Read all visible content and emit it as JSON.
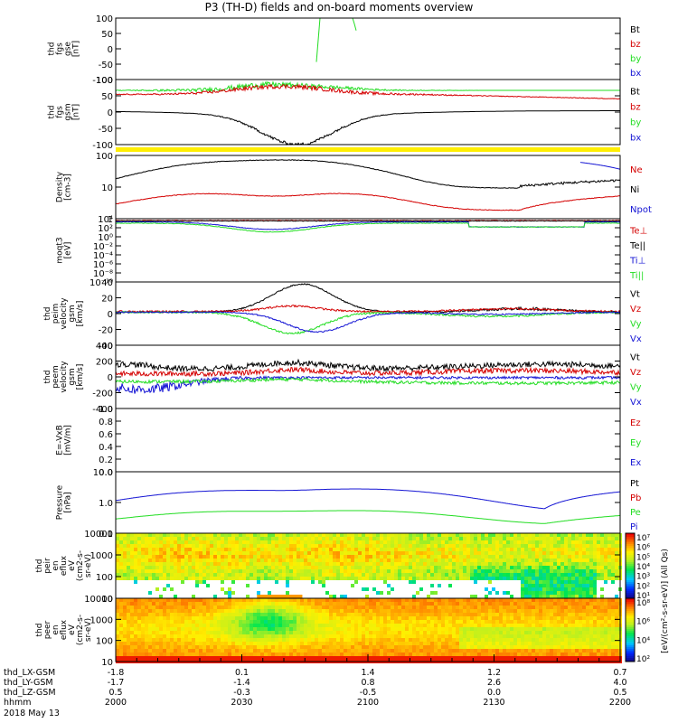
{
  "title": "P3 (TH-D) fields and on-board moments overview",
  "date_label": "2018 May 13",
  "colors": {
    "black": "#000000",
    "red": "#d40000",
    "green": "#22dd22",
    "blue": "#1414d4",
    "yellow": "#ffee00"
  },
  "chart_data": [
    {
      "id": "fgs-gse",
      "type": "line",
      "ylabel": [
        "thd",
        "fgs",
        "gse",
        "[nT]"
      ],
      "yticks": [
        "100",
        "50",
        "0",
        "-50",
        "-100"
      ],
      "legend": [
        {
          "name": "Bt",
          "color": "black"
        },
        {
          "name": "bz",
          "color": "red"
        },
        {
          "name": "by",
          "color": "green"
        },
        {
          "name": "bx",
          "color": "blue"
        }
      ]
    },
    {
      "id": "fgs-gsm",
      "type": "line",
      "ylabel": [
        "thd",
        "fgs",
        "gsm",
        "[nT]"
      ],
      "yticks": [
        "100",
        "50",
        "0",
        "-50",
        "-100"
      ],
      "legend": [
        {
          "name": "Bt",
          "color": "black"
        },
        {
          "name": "bz",
          "color": "red"
        },
        {
          "name": "by",
          "color": "green"
        },
        {
          "name": "bx",
          "color": "blue"
        }
      ]
    },
    {
      "id": "density",
      "type": "line",
      "ylabel": [
        "Density",
        "[cm-3]"
      ],
      "yticks": [
        "100",
        "10",
        "1"
      ],
      "legend": [
        {
          "name": "Ne",
          "color": "red"
        },
        {
          "name": "Ni",
          "color": "black"
        },
        {
          "name": "Npot",
          "color": "blue"
        }
      ]
    },
    {
      "id": "temperature",
      "type": "line",
      "ylabel": [
        "moqt3",
        "[eV]"
      ],
      "yticks": [
        "10⁴",
        "10²",
        "10⁰",
        "10⁻²",
        "10⁻⁴",
        "10⁻⁶",
        "10⁻⁸",
        "10⁻¹⁰"
      ],
      "legend": [
        {
          "name": "Te⊥",
          "color": "red"
        },
        {
          "name": "Te||",
          "color": "black"
        },
        {
          "name": "Ti⊥",
          "color": "blue"
        },
        {
          "name": "Ti||",
          "color": "green"
        }
      ]
    },
    {
      "id": "peim-velocity",
      "type": "line",
      "ylabel": [
        "thd",
        "peim",
        "velocity",
        "gsm",
        "[km/s]"
      ],
      "yticks": [
        "40",
        "20",
        "0",
        "-20",
        "-40"
      ],
      "legend": [
        {
          "name": "Vt",
          "color": "black"
        },
        {
          "name": "Vz",
          "color": "red"
        },
        {
          "name": "Vy",
          "color": "green"
        },
        {
          "name": "Vx",
          "color": "blue"
        }
      ]
    },
    {
      "id": "peem-velocity",
      "type": "line",
      "ylabel": [
        "thd",
        "peem",
        "velocity",
        "gsm",
        "[km/s]"
      ],
      "yticks": [
        "400",
        "200",
        "0",
        "-200",
        "-400"
      ],
      "legend": [
        {
          "name": "Vt",
          "color": "black"
        },
        {
          "name": "Vz",
          "color": "red"
        },
        {
          "name": "Vy",
          "color": "green"
        },
        {
          "name": "Vx",
          "color": "blue"
        }
      ]
    },
    {
      "id": "e-field",
      "type": "line",
      "ylabel": [
        "E=-VxB",
        "[mV/m]"
      ],
      "yticks": [
        "1.0",
        "0.8",
        "0.6",
        "0.4",
        "0.2",
        "0.0"
      ],
      "legend": [
        {
          "name": "Ez",
          "color": "red"
        },
        {
          "name": "Ey",
          "color": "green"
        },
        {
          "name": "Ex",
          "color": "blue"
        }
      ]
    },
    {
      "id": "pressure",
      "type": "line",
      "ylabel": [
        "Pressure",
        "[nPa]"
      ],
      "yticks": [
        "10.0",
        "1.0",
        "0.1"
      ],
      "legend": [
        {
          "name": "Pt",
          "color": "black"
        },
        {
          "name": "Pb",
          "color": "red"
        },
        {
          "name": "Pe",
          "color": "green"
        },
        {
          "name": "Pi",
          "color": "blue"
        }
      ]
    },
    {
      "id": "peir-spectrogram",
      "type": "heatmap",
      "ylabel": [
        "thd",
        "peir",
        "en",
        "eflux",
        "eV",
        "(cm2-s-",
        "sr-eV)"
      ],
      "yticks": [
        "10000",
        "1000",
        "100",
        "10"
      ],
      "colorbar_ticks": [
        "10⁷",
        "10⁶",
        "10⁵",
        "10⁴",
        "10³",
        "10²",
        "10¹"
      ],
      "colorbar_label": "[eV/(cm²-s-sr-eV)] (All Qs)"
    },
    {
      "id": "peer-spectrogram",
      "type": "heatmap",
      "ylabel": [
        "thd",
        "peer",
        "en",
        "eflux",
        "eV",
        "(cm2-s-",
        "sr-eV)"
      ],
      "yticks": [
        "10000",
        "1000",
        "100",
        "10"
      ],
      "colorbar_ticks": [
        "10⁸",
        "10⁶",
        "10⁴",
        "10²"
      ],
      "colorbar_label": "[eV/(cm²-s-sr-eV)]"
    }
  ],
  "x_axis": {
    "rows": [
      {
        "label": "thd_LX-GSM",
        "values": [
          "-1.8",
          "0.1",
          "1.4",
          "1.2",
          "0.7"
        ]
      },
      {
        "label": "thd_LY-GSM",
        "values": [
          "-1.7",
          "-1.4",
          "0.8",
          "2.6",
          "4.0"
        ]
      },
      {
        "label": "thd_LZ-GSM",
        "values": [
          "0.5",
          "-0.3",
          "-0.5",
          "0.0",
          "0.5"
        ]
      },
      {
        "label": "hhmm",
        "values": [
          "2000",
          "2030",
          "2100",
          "2130",
          "2200"
        ]
      }
    ]
  }
}
